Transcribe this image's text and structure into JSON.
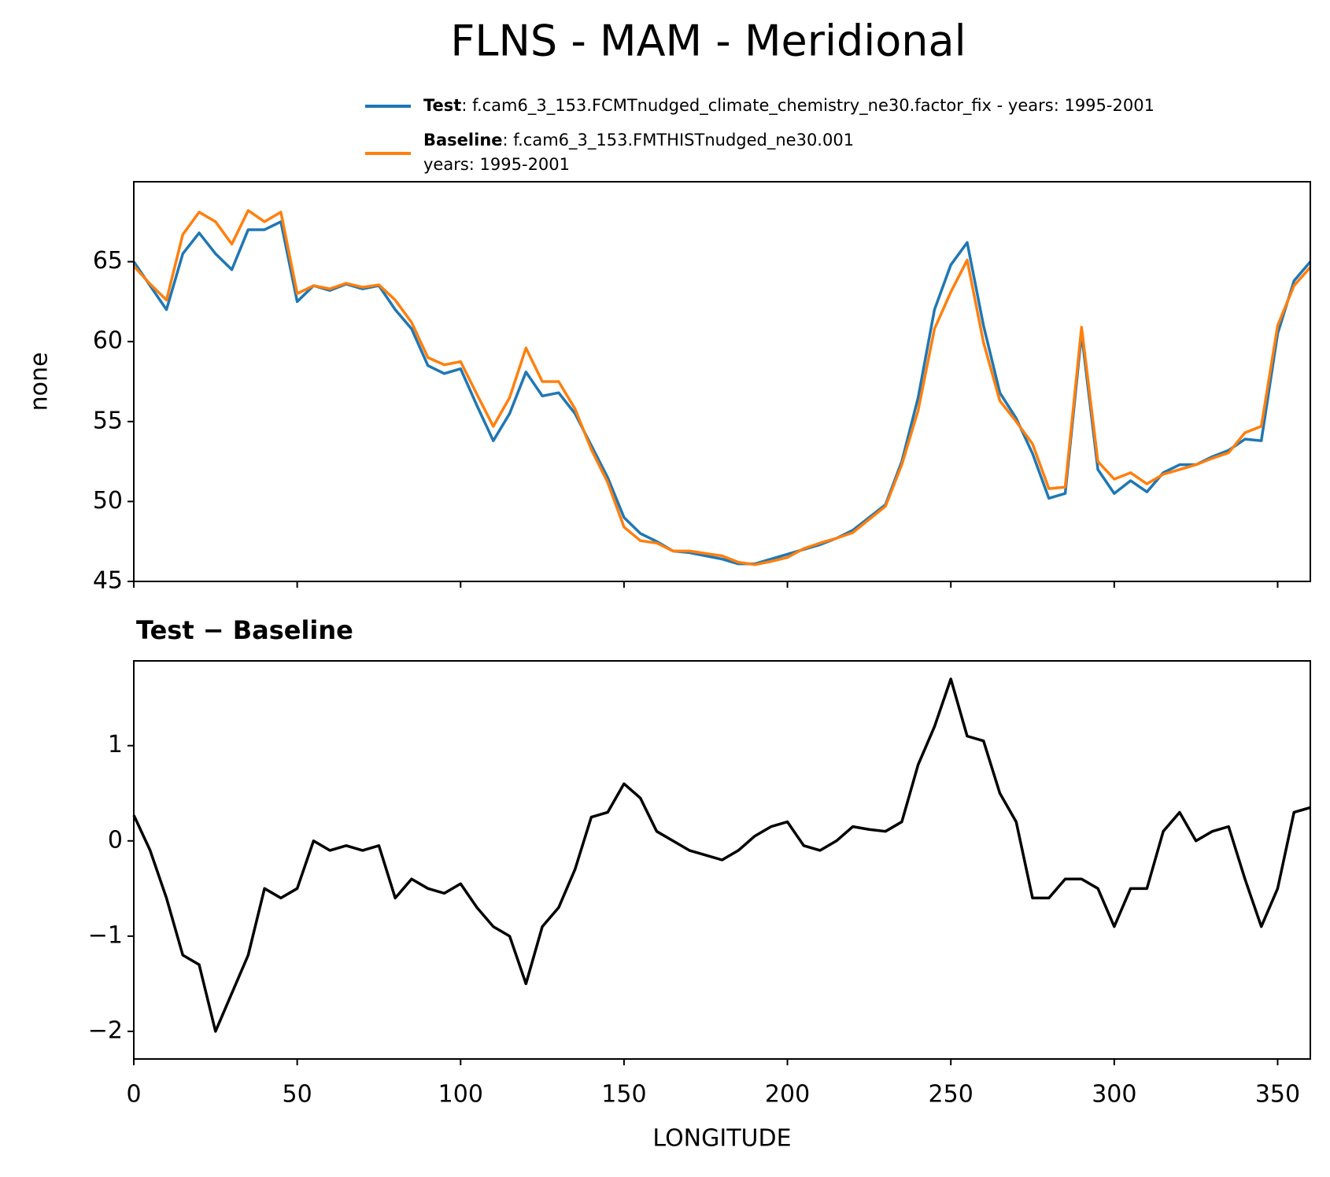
{
  "title": "FLNS - MAM - Meridional",
  "chart_data": [
    {
      "type": "line",
      "ylabel": "none",
      "x": [
        0,
        5,
        10,
        15,
        20,
        25,
        30,
        35,
        40,
        45,
        50,
        55,
        60,
        65,
        70,
        75,
        80,
        85,
        90,
        95,
        100,
        105,
        110,
        115,
        120,
        125,
        130,
        135,
        140,
        145,
        150,
        155,
        160,
        165,
        170,
        175,
        180,
        185,
        190,
        195,
        200,
        205,
        210,
        215,
        220,
        225,
        230,
        235,
        240,
        245,
        250,
        255,
        260,
        265,
        270,
        275,
        280,
        285,
        290,
        295,
        300,
        305,
        310,
        315,
        320,
        325,
        330,
        335,
        340,
        345,
        350,
        355,
        360
      ],
      "xlim": [
        0,
        360
      ],
      "xticks": [
        0,
        50,
        100,
        150,
        200,
        250,
        300,
        350
      ],
      "ylim": [
        45,
        70
      ],
      "yticks": [
        45,
        50,
        55,
        60,
        65
      ],
      "series": [
        {
          "name": "Test",
          "description": [
            ": f.cam6_3_153.FCMTnudged_climate_chemistry_ne30.factor_fix - years: 1995-2001"
          ],
          "color": "#1f77b4",
          "values": [
            65.0,
            63.5,
            62.0,
            65.5,
            66.8,
            65.5,
            64.5,
            67.0,
            67.0,
            67.5,
            62.5,
            63.5,
            63.2,
            63.6,
            63.3,
            63.5,
            62.0,
            60.8,
            58.5,
            58.0,
            58.3,
            56.0,
            53.8,
            55.5,
            58.1,
            56.6,
            56.8,
            55.5,
            53.5,
            51.5,
            49.0,
            48.0,
            47.5,
            46.9,
            46.8,
            46.6,
            46.4,
            46.1,
            46.1,
            46.4,
            46.7,
            47.0,
            47.3,
            47.7,
            48.2,
            49.0,
            49.8,
            52.5,
            56.5,
            62.0,
            64.8,
            66.2,
            61.0,
            56.8,
            55.2,
            53.0,
            50.2,
            50.5,
            60.5,
            52.0,
            50.5,
            51.3,
            50.6,
            51.8,
            52.3,
            52.3,
            52.8,
            53.2,
            53.9,
            53.8,
            60.5,
            63.8,
            65.0
          ]
        },
        {
          "name": "Baseline",
          "description": [
            ": f.cam6_3_153.FMTHISTnudged_ne30.001",
            "years: 1995-2001"
          ],
          "color": "#ff7f0e",
          "values": [
            64.73,
            63.6,
            62.6,
            66.7,
            68.1,
            67.5,
            66.1,
            68.2,
            67.5,
            68.1,
            63.0,
            63.5,
            63.3,
            63.65,
            63.4,
            63.55,
            62.6,
            61.2,
            59.0,
            58.55,
            58.75,
            56.7,
            54.7,
            56.5,
            59.6,
            57.5,
            57.5,
            55.8,
            53.25,
            51.2,
            48.4,
            47.55,
            47.4,
            46.9,
            46.9,
            46.75,
            46.6,
            46.2,
            46.05,
            46.25,
            46.5,
            47.05,
            47.4,
            47.7,
            48.05,
            48.88,
            49.7,
            52.3,
            55.7,
            60.8,
            63.1,
            65.1,
            59.95,
            56.3,
            55.0,
            53.6,
            50.8,
            50.9,
            60.9,
            52.5,
            51.4,
            51.8,
            51.1,
            51.7,
            52.0,
            52.3,
            52.7,
            53.05,
            54.3,
            54.7,
            61.0,
            63.5,
            64.65
          ]
        }
      ]
    },
    {
      "type": "line",
      "title": "Test − Baseline",
      "xlabel": "LONGITUDE",
      "x": [
        0,
        5,
        10,
        15,
        20,
        25,
        30,
        35,
        40,
        45,
        50,
        55,
        60,
        65,
        70,
        75,
        80,
        85,
        90,
        95,
        100,
        105,
        110,
        115,
        120,
        125,
        130,
        135,
        140,
        145,
        150,
        155,
        160,
        165,
        170,
        175,
        180,
        185,
        190,
        195,
        200,
        205,
        210,
        215,
        220,
        225,
        230,
        235,
        240,
        245,
        250,
        255,
        260,
        265,
        270,
        275,
        280,
        285,
        290,
        295,
        300,
        305,
        310,
        315,
        320,
        325,
        330,
        335,
        340,
        345,
        350,
        355,
        360
      ],
      "xlim": [
        0,
        360
      ],
      "xticks": [
        0,
        50,
        100,
        150,
        200,
        250,
        300,
        350
      ],
      "ylim": [
        -2.29,
        1.89
      ],
      "yticks": [
        {
          "value": -2,
          "label": "−2"
        },
        {
          "value": -1,
          "label": "−1"
        },
        0,
        1
      ],
      "color": "#000000",
      "values": [
        0.27,
        -0.1,
        -0.6,
        -1.2,
        -1.3,
        -2.0,
        -1.6,
        -1.2,
        -0.5,
        -0.6,
        -0.5,
        0.0,
        -0.1,
        -0.05,
        -0.1,
        -0.05,
        -0.6,
        -0.4,
        -0.5,
        -0.55,
        -0.45,
        -0.7,
        -0.9,
        -1.0,
        -1.5,
        -0.9,
        -0.7,
        -0.3,
        0.25,
        0.3,
        0.6,
        0.45,
        0.1,
        0.0,
        -0.1,
        -0.15,
        -0.2,
        -0.1,
        0.05,
        0.15,
        0.2,
        -0.05,
        -0.1,
        0.0,
        0.15,
        0.12,
        0.1,
        0.2,
        0.8,
        1.2,
        1.7,
        1.1,
        1.05,
        0.5,
        0.2,
        -0.6,
        -0.6,
        -0.4,
        -0.4,
        -0.5,
        -0.9,
        -0.5,
        -0.5,
        0.1,
        0.3,
        0.0,
        0.1,
        0.15,
        -0.4,
        -0.9,
        -0.5,
        0.3,
        0.35
      ]
    }
  ]
}
